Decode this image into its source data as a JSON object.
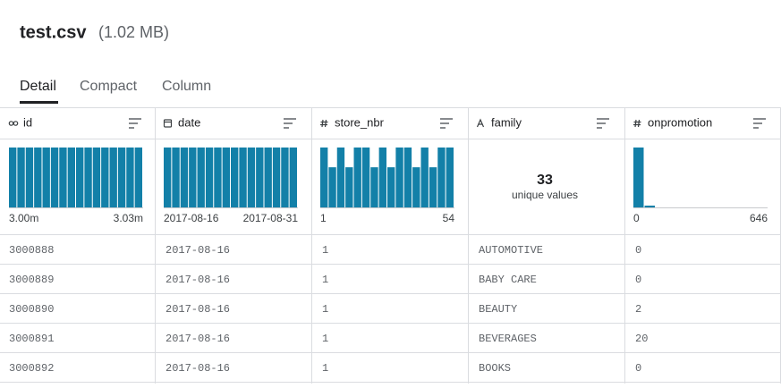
{
  "header": {
    "title": "test.csv",
    "size": "(1.02 MB)"
  },
  "tabs": [
    "Detail",
    "Compact",
    "Column"
  ],
  "columns": [
    {
      "name": "id",
      "summary": {
        "min": "3.00m",
        "max": "3.03m"
      },
      "histogram": [
        100,
        100,
        100,
        100,
        100,
        100,
        100,
        100,
        100,
        100,
        100,
        100,
        100,
        100,
        100,
        100
      ]
    },
    {
      "name": "date",
      "summary": {
        "min": "2017-08-16",
        "max": "2017-08-31"
      },
      "histogram": [
        100,
        100,
        100,
        100,
        100,
        100,
        100,
        100,
        100,
        100,
        100,
        100,
        100,
        100,
        100,
        100
      ]
    },
    {
      "name": "store_nbr",
      "summary": {
        "min": "1",
        "max": "54"
      },
      "histogram": [
        100,
        67,
        100,
        67,
        100,
        100,
        67,
        100,
        67,
        100,
        100,
        67,
        100,
        67,
        100,
        100
      ]
    },
    {
      "name": "family",
      "unique": {
        "count": "33",
        "label": "unique values"
      }
    },
    {
      "name": "onpromotion",
      "summary": {
        "min": "0",
        "max": "646"
      },
      "histogram": [
        100,
        3,
        0,
        0,
        0,
        0,
        0,
        0,
        0,
        0,
        0,
        0
      ]
    }
  ],
  "rows": [
    [
      "3000888",
      "2017-08-16",
      "1",
      "AUTOMOTIVE",
      "0"
    ],
    [
      "3000889",
      "2017-08-16",
      "1",
      "BABY CARE",
      "0"
    ],
    [
      "3000890",
      "2017-08-16",
      "1",
      "BEAUTY",
      "2"
    ],
    [
      "3000891",
      "2017-08-16",
      "1",
      "BEVERAGES",
      "20"
    ],
    [
      "3000892",
      "2017-08-16",
      "1",
      "BOOKS",
      "0"
    ]
  ]
}
